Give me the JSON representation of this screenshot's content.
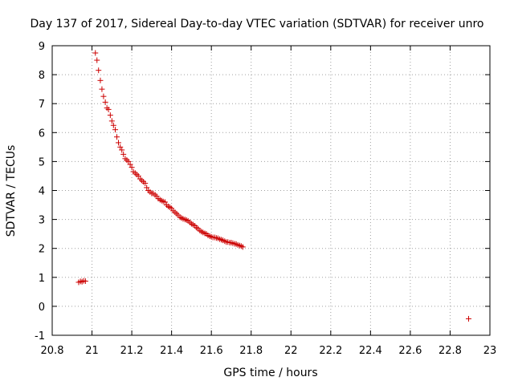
{
  "chart_data": {
    "type": "scatter",
    "title": "Day 137 of 2017, Sidereal Day-to-day VTEC variation (SDTVAR) for receiver unro",
    "xlabel": "GPS time / hours",
    "ylabel": "SDTVAR / TECUs",
    "xlim": [
      20.8,
      23
    ],
    "ylim": [
      -1,
      9
    ],
    "xticks": [
      "20.8",
      "21",
      "21.2",
      "21.4",
      "21.6",
      "21.8",
      "22",
      "22.2",
      "22.4",
      "22.6",
      "22.8",
      "23"
    ],
    "yticks": [
      "-1",
      "0",
      "1",
      "2",
      "3",
      "4",
      "5",
      "6",
      "7",
      "8",
      "9"
    ],
    "grid": true,
    "marker": "+",
    "color": "#cc0000",
    "series": [
      {
        "name": "SDTVAR",
        "x": [
          20.933,
          20.942,
          20.95,
          20.958,
          20.967,
          21.017,
          21.025,
          21.033,
          21.042,
          21.05,
          21.058,
          21.067,
          21.075,
          21.083,
          21.092,
          21.1,
          21.108,
          21.117,
          21.125,
          21.133,
          21.142,
          21.15,
          21.158,
          21.167,
          21.175,
          21.183,
          21.192,
          21.2,
          21.208,
          21.217,
          21.225,
          21.233,
          21.242,
          21.25,
          21.258,
          21.267,
          21.275,
          21.283,
          21.292,
          21.3,
          21.308,
          21.317,
          21.325,
          21.333,
          21.342,
          21.35,
          21.358,
          21.367,
          21.375,
          21.383,
          21.392,
          21.4,
          21.408,
          21.417,
          21.425,
          21.433,
          21.442,
          21.45,
          21.458,
          21.467,
          21.475,
          21.483,
          21.492,
          21.5,
          21.508,
          21.517,
          21.525,
          21.533,
          21.542,
          21.55,
          21.558,
          21.567,
          21.575,
          21.583,
          21.592,
          21.6,
          21.608,
          21.617,
          21.625,
          21.633,
          21.642,
          21.65,
          21.658,
          21.667,
          21.675,
          21.683,
          21.692,
          21.7,
          21.708,
          21.717,
          21.725,
          21.733,
          21.742,
          21.75,
          21.758,
          22.893
        ],
        "y": [
          0.83,
          0.86,
          0.85,
          0.88,
          0.87,
          8.75,
          8.5,
          8.15,
          7.8,
          7.5,
          7.25,
          7.05,
          6.85,
          6.8,
          6.6,
          6.4,
          6.25,
          6.1,
          5.85,
          5.65,
          5.5,
          5.4,
          5.25,
          5.1,
          5.05,
          5.0,
          4.9,
          4.8,
          4.65,
          4.6,
          4.55,
          4.5,
          4.4,
          4.35,
          4.3,
          4.25,
          4.1,
          4.0,
          3.95,
          3.9,
          3.9,
          3.85,
          3.8,
          3.72,
          3.68,
          3.65,
          3.62,
          3.6,
          3.5,
          3.45,
          3.42,
          3.38,
          3.3,
          3.25,
          3.2,
          3.15,
          3.08,
          3.05,
          3.02,
          3.0,
          2.98,
          2.95,
          2.9,
          2.85,
          2.82,
          2.78,
          2.72,
          2.68,
          2.62,
          2.58,
          2.55,
          2.52,
          2.5,
          2.45,
          2.42,
          2.4,
          2.38,
          2.38,
          2.36,
          2.35,
          2.32,
          2.3,
          2.28,
          2.25,
          2.22,
          2.22,
          2.2,
          2.2,
          2.18,
          2.16,
          2.15,
          2.12,
          2.1,
          2.08,
          2.05,
          -0.43
        ]
      }
    ]
  }
}
